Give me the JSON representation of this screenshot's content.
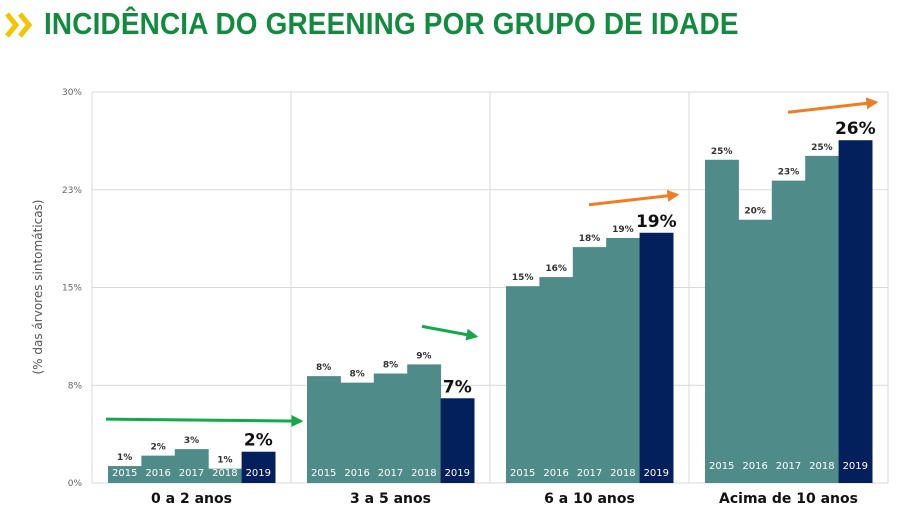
{
  "title": "INCIDÊNCIA DO GREENING POR GRUPO DE IDADE",
  "colors": {
    "title": "#118b3e",
    "bar": "#4f8c89",
    "bar_highlight": "#04205c",
    "arrow_green": "#15a84a",
    "arrow_orange": "#ef7d22",
    "logo": "#f2c500",
    "grid": "#d9d9d9"
  },
  "icons": {
    "logo": "double-chevron-icon"
  },
  "chart_data": {
    "type": "bar",
    "title": "",
    "ylabel": "(% das árvores sintomáticas)",
    "ylim": [
      0,
      30
    ],
    "y_ticks": [
      "0%",
      "8%",
      "15%",
      "23%",
      "30%"
    ],
    "grid": true,
    "groups": [
      {
        "name": "0 a 2 anos",
        "years": [
          "2015",
          "2016",
          "2017",
          "2018",
          "2019"
        ],
        "values": [
          1.3,
          2.1,
          2.6,
          1.1,
          2.4
        ],
        "value_labels": [
          "1%",
          "2%",
          "3%",
          "1%",
          "2%"
        ],
        "trend": "up",
        "arrow": "green"
      },
      {
        "name": "3 a 5 anos",
        "years": [
          "2015",
          "2016",
          "2017",
          "2018",
          "2019"
        ],
        "values": [
          8.2,
          7.7,
          8.4,
          9.1,
          6.5
        ],
        "value_labels": [
          "8%",
          "8%",
          "8%",
          "9%",
          "7%"
        ],
        "trend": "down",
        "arrow": "green"
      },
      {
        "name": "6 a 10 anos",
        "years": [
          "2015",
          "2016",
          "2017",
          "2018",
          "2019"
        ],
        "values": [
          15.1,
          15.8,
          18.1,
          18.8,
          19.2
        ],
        "value_labels": [
          "15%",
          "16%",
          "18%",
          "19%",
          "19%"
        ],
        "trend": "up",
        "arrow": "orange"
      },
      {
        "name": "Acima de 10 anos",
        "years": [
          "2015",
          "2016",
          "2017",
          "2018",
          "2019"
        ],
        "values": [
          24.8,
          20.2,
          23.2,
          25.1,
          26.3
        ],
        "value_labels": [
          "25%",
          "20%",
          "23%",
          "25%",
          "26%"
        ],
        "trend": "up",
        "arrow": "orange"
      }
    ]
  }
}
